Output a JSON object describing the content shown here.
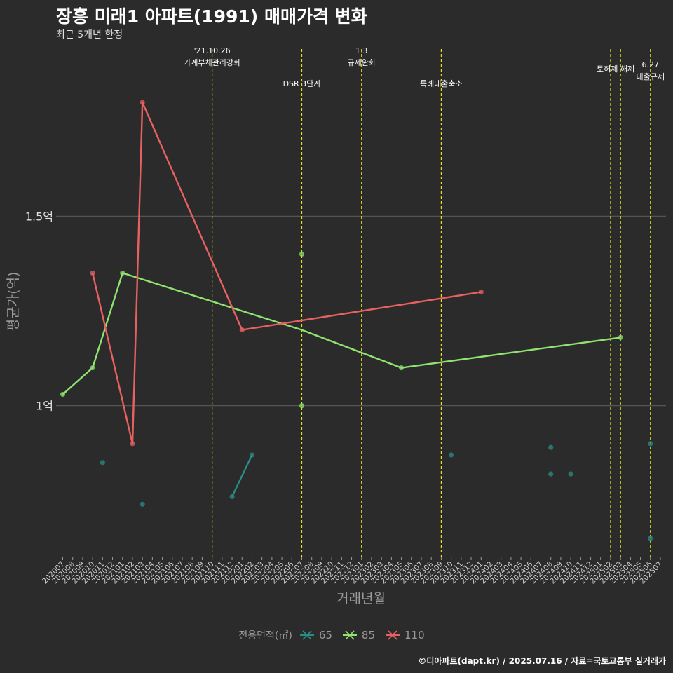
{
  "title": "장흥 미래1 아파트(1991) 매매가격 변화",
  "subtitle": "최근 5개년 한정",
  "caption": "©디아파트(dapt.kr) / 2025.07.16 / 자료=국토교통부 실거래가",
  "colors": {
    "background": "#2b2b2b",
    "grid": "#5a5a5a",
    "vline": "#e2e21a",
    "s65": "#2a8d85",
    "s85": "#90e36f",
    "s110": "#e86161"
  },
  "chart_data": {
    "type": "line",
    "xlabel": "거래년월",
    "ylabel": "평균가(억)",
    "ylim": [
      0.6,
      1.95
    ],
    "y_ticks": [
      {
        "value": 1.0,
        "label": "1억"
      },
      {
        "value": 1.5,
        "label": "1.5억"
      }
    ],
    "x_categories": [
      "202007",
      "202008",
      "202009",
      "202010",
      "202011",
      "202012",
      "202101",
      "202102",
      "202103",
      "202104",
      "202105",
      "202106",
      "202107",
      "202108",
      "202109",
      "202110",
      "202111",
      "202112",
      "202201",
      "202202",
      "202203",
      "202204",
      "202205",
      "202206",
      "202207",
      "202208",
      "202209",
      "202210",
      "202211",
      "202212",
      "202301",
      "202302",
      "202303",
      "202304",
      "202305",
      "202306",
      "202307",
      "202308",
      "202309",
      "202310",
      "202311",
      "202312",
      "202401",
      "202402",
      "202403",
      "202404",
      "202405",
      "202406",
      "202407",
      "202408",
      "202409",
      "202410",
      "202411",
      "202412",
      "202501",
      "202502",
      "202503",
      "202504",
      "202505",
      "202506",
      "202507"
    ],
    "legend": {
      "title": "전용면적(㎡)",
      "position": "bottom",
      "items": [
        {
          "label": "65",
          "series": "65"
        },
        {
          "label": "85",
          "series": "85"
        },
        {
          "label": "110",
          "series": "110"
        }
      ]
    },
    "series": [
      {
        "name": "65",
        "color": "#2a8d85",
        "line": [
          {
            "x": "202112",
            "y": 0.76
          },
          {
            "x": "202202",
            "y": 0.87
          }
        ],
        "points": [
          {
            "x": "202011",
            "y": 0.85
          },
          {
            "x": "202103",
            "y": 0.74
          },
          {
            "x": "202112",
            "y": 0.76
          },
          {
            "x": "202202",
            "y": 0.87
          },
          {
            "x": "202310",
            "y": 0.87
          },
          {
            "x": "202408",
            "y": 0.89
          },
          {
            "x": "202408",
            "y": 0.82
          },
          {
            "x": "202410",
            "y": 0.82
          },
          {
            "x": "202506",
            "y": 0.9
          },
          {
            "x": "202506",
            "y": 0.65
          }
        ]
      },
      {
        "name": "85",
        "color": "#90e36f",
        "line": [
          {
            "x": "202007",
            "y": 1.03
          },
          {
            "x": "202010",
            "y": 1.1
          },
          {
            "x": "202101",
            "y": 1.35
          },
          {
            "x": "202207",
            "y": 1.2
          },
          {
            "x": "202305",
            "y": 1.1
          },
          {
            "x": "202503",
            "y": 1.18
          }
        ],
        "points": [
          {
            "x": "202007",
            "y": 1.03
          },
          {
            "x": "202010",
            "y": 1.1
          },
          {
            "x": "202101",
            "y": 1.35
          },
          {
            "x": "202207",
            "y": 1.4
          },
          {
            "x": "202207",
            "y": 1.0
          },
          {
            "x": "202305",
            "y": 1.1
          },
          {
            "x": "202503",
            "y": 1.18
          }
        ]
      },
      {
        "name": "110",
        "color": "#e86161",
        "line": [
          {
            "x": "202010",
            "y": 1.35
          },
          {
            "x": "202102",
            "y": 0.9
          },
          {
            "x": "202103",
            "y": 1.8
          },
          {
            "x": "202201",
            "y": 1.2
          },
          {
            "x": "202401",
            "y": 1.3
          }
        ],
        "points": [
          {
            "x": "202010",
            "y": 1.35
          },
          {
            "x": "202102",
            "y": 0.9
          },
          {
            "x": "202103",
            "y": 1.8
          },
          {
            "x": "202201",
            "y": 1.2
          },
          {
            "x": "202401",
            "y": 1.3
          }
        ]
      }
    ],
    "events": [
      {
        "x": "202110",
        "lines": [
          "'21.10.26",
          "가계부채관리강화"
        ],
        "row": 1
      },
      {
        "x": "202207",
        "lines": [
          "DSR 3단계"
        ],
        "row": 3
      },
      {
        "x": "202301",
        "lines": [
          "1.3",
          "규제완화"
        ],
        "row": 1
      },
      {
        "x": "202309",
        "lines": [
          "특례대출축소"
        ],
        "row": 3
      },
      {
        "x": "202502",
        "lines": [
          "토허제 해제"
        ],
        "row": 2,
        "span_to": "202503"
      },
      {
        "x": "202503",
        "lines": [],
        "row": 0
      },
      {
        "x": "202506",
        "lines": [
          "6.27",
          "대출규제"
        ],
        "row": 2
      }
    ]
  }
}
